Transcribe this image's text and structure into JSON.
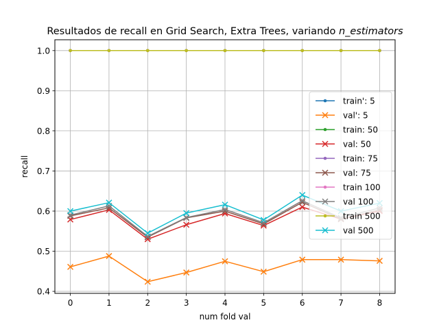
{
  "chart_data": {
    "type": "line",
    "title": "Resultados de recall en Grid Search, Extra Trees, variando ",
    "title_italic": "n_estimators",
    "xlabel": "num fold val",
    "ylabel": "recall",
    "xlim": [
      -0.4,
      8.4
    ],
    "ylim": [
      0.395,
      1.027
    ],
    "xticks": [
      0,
      1,
      2,
      3,
      4,
      5,
      6,
      7,
      8
    ],
    "yticks": [
      0.4,
      0.5,
      0.6,
      0.7,
      0.8,
      0.9,
      1.0
    ],
    "ytick_labels": [
      "0.4",
      "0.5",
      "0.6",
      "0.7",
      "0.8",
      "0.9",
      "1.0"
    ],
    "grid": true,
    "legend_position": "center-right",
    "x": [
      0,
      1,
      2,
      3,
      4,
      5,
      6,
      7,
      8
    ],
    "series": [
      {
        "name": "train': 5",
        "color": "#1f77b4",
        "marker": "dot",
        "values": [
          1,
          1,
          1,
          1,
          1,
          1,
          1,
          1,
          1
        ]
      },
      {
        "name": "val': 5",
        "color": "#ff7f0e",
        "marker": "x",
        "values": [
          0.461,
          0.488,
          0.424,
          0.447,
          0.475,
          0.449,
          0.479,
          0.479,
          0.476
        ]
      },
      {
        "name": "train: 50",
        "color": "#2ca02c",
        "marker": "dot",
        "values": [
          1,
          1,
          1,
          1,
          1,
          1,
          1,
          1,
          1
        ]
      },
      {
        "name": "val: 50",
        "color": "#d62728",
        "marker": "x",
        "values": [
          0.579,
          0.603,
          0.53,
          0.566,
          0.594,
          0.564,
          0.61,
          0.58,
          0.6
        ]
      },
      {
        "name": "train: 75",
        "color": "#9467bd",
        "marker": "dot",
        "values": [
          1,
          1,
          1,
          1,
          1,
          1,
          1,
          1,
          1
        ]
      },
      {
        "name": "val: 75",
        "color": "#8c564b",
        "marker": "x",
        "values": [
          0.588,
          0.608,
          0.535,
          0.583,
          0.6,
          0.568,
          0.622,
          0.58,
          0.603
        ]
      },
      {
        "name": "train 100",
        "color": "#e377c2",
        "marker": "dot",
        "values": [
          1,
          1,
          1,
          1,
          1,
          1,
          1,
          1,
          1
        ]
      },
      {
        "name": "val 100",
        "color": "#7f7f7f",
        "marker": "x",
        "values": [
          0.59,
          0.613,
          0.537,
          0.584,
          0.604,
          0.571,
          0.626,
          0.583,
          0.608
        ]
      },
      {
        "name": "train 500",
        "color": "#bcbd22",
        "marker": "dot",
        "values": [
          1,
          1,
          1,
          1,
          1,
          1,
          1,
          1,
          1
        ]
      },
      {
        "name": "val 500",
        "color": "#17becf",
        "marker": "x",
        "values": [
          0.6,
          0.621,
          0.545,
          0.595,
          0.616,
          0.578,
          0.64,
          0.6,
          0.62
        ]
      }
    ]
  }
}
